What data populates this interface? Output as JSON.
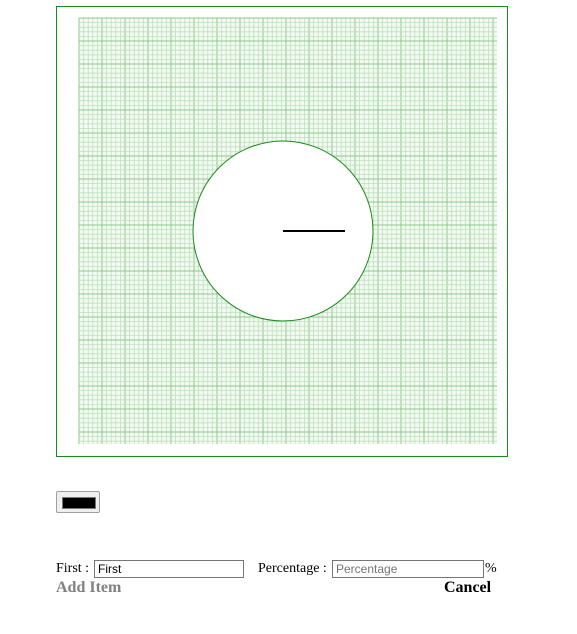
{
  "colors": {
    "frame": "#1a8a1a",
    "grid_minor": "#bfe0bf",
    "grid_major": "#8fc68f",
    "circle_fill": "#ffffff",
    "circle_stroke": "#1a8a1a",
    "hand": "#000000",
    "swatch": "#000000"
  },
  "graph": {
    "icon": "circle-with-radius-line"
  },
  "color_picker": {
    "value": "#000000",
    "icon": "color-swatch-icon"
  },
  "form": {
    "first_label": "First :",
    "first_value": "First",
    "first_placeholder": "First",
    "percentage_label": "Percentage :",
    "percentage_value": "",
    "percentage_placeholder": "Percentage",
    "percent_symbol": "%"
  },
  "actions": {
    "add_item": "Add Item",
    "cancel": "Cancel"
  }
}
